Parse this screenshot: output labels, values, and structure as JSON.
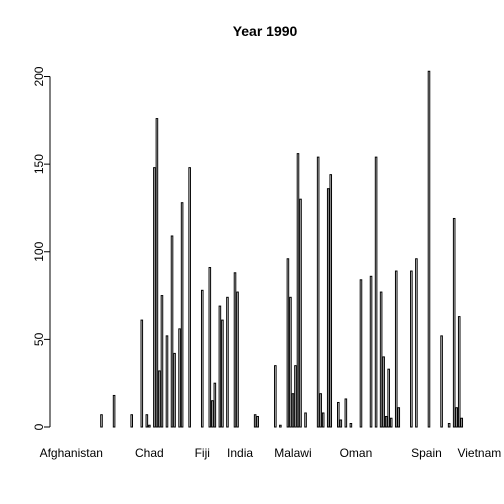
{
  "chart_data": {
    "type": "bar",
    "title": "Year 1990",
    "xlabel": "",
    "ylabel": "",
    "ylim": [
      0,
      210
    ],
    "yticks": [
      0,
      50,
      100,
      150,
      200
    ],
    "grid": false,
    "bar_fill": "#ffffff",
    "bar_stroke": "#000000",
    "x_tick_labels": [
      {
        "label": "Afghanistan",
        "index": 0
      },
      {
        "label": "Chad",
        "index": 31
      },
      {
        "label": "Fiji",
        "index": 52
      },
      {
        "label": "India",
        "index": 67
      },
      {
        "label": "Malawi",
        "index": 88
      },
      {
        "label": "Oman",
        "index": 113
      },
      {
        "label": "Spain",
        "index": 141
      },
      {
        "label": "Vietnam",
        "index": 162
      }
    ],
    "values": [
      0,
      0,
      0,
      0,
      0,
      0,
      0,
      0,
      0,
      0,
      0,
      0,
      7,
      0,
      0,
      0,
      0,
      18,
      0,
      0,
      0,
      0,
      0,
      0,
      7,
      0,
      0,
      0,
      61,
      0,
      7,
      1,
      0,
      148,
      176,
      32,
      75,
      0,
      52,
      0,
      109,
      42,
      0,
      56,
      128,
      0,
      0,
      148,
      0,
      0,
      0,
      0,
      78,
      0,
      0,
      91,
      15,
      25,
      0,
      69,
      61,
      0,
      74,
      0,
      0,
      88,
      77,
      0,
      0,
      0,
      0,
      0,
      0,
      7,
      6,
      0,
      0,
      0,
      0,
      0,
      0,
      35,
      0,
      1,
      0,
      0,
      96,
      74,
      19,
      35,
      156,
      130,
      0,
      8,
      0,
      0,
      0,
      0,
      154,
      19,
      8,
      0,
      136,
      144,
      0,
      0,
      14,
      4,
      0,
      16,
      0,
      2,
      0,
      0,
      0,
      84,
      0,
      0,
      0,
      86,
      0,
      154,
      0,
      77,
      40,
      6,
      33,
      5,
      0,
      89,
      11,
      0,
      0,
      0,
      0,
      89,
      0,
      96,
      0,
      0,
      0,
      0,
      203,
      0,
      0,
      0,
      0,
      52,
      0,
      0,
      2,
      0,
      119,
      11,
      63,
      5
    ]
  }
}
